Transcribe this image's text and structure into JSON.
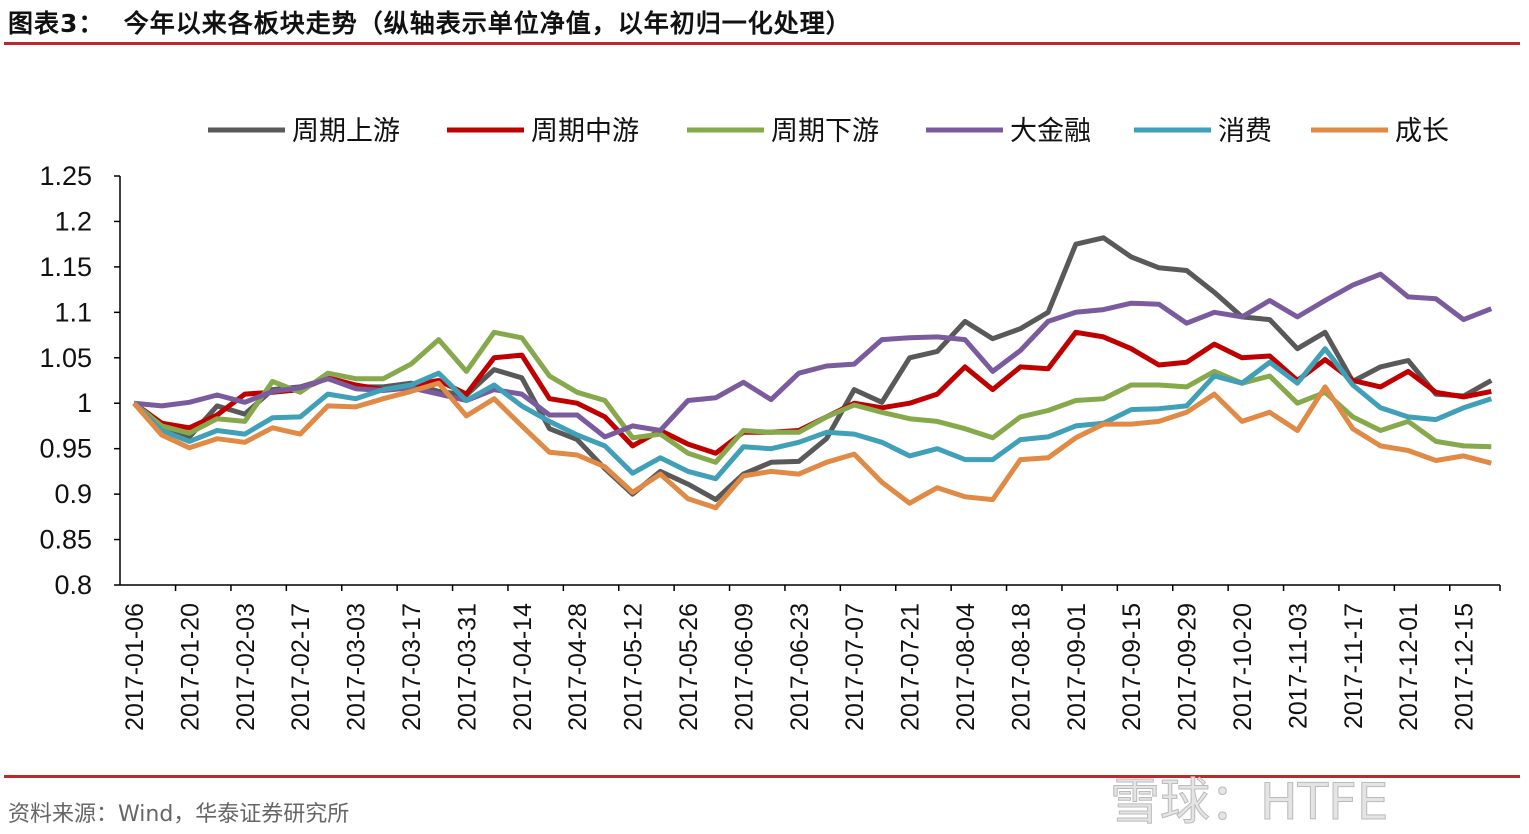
{
  "header": {
    "title": "图表3：  今年以来各板块走势（纵轴表示单位净值，以年初归一化处理）"
  },
  "footer": {
    "source": "资料来源：Wind，华泰证券研究所",
    "watermark": "雪球：HTFE"
  },
  "chart_data": {
    "type": "line",
    "title": "",
    "xlabel": "",
    "ylabel": "",
    "ylim": [
      0.8,
      1.25
    ],
    "yticks": [
      "0.8",
      "0.85",
      "0.9",
      "0.95",
      "1",
      "1.05",
      "1.1",
      "1.15",
      "1.2",
      "1.25"
    ],
    "grid": false,
    "legend": "top",
    "x": [
      "2017-01-06",
      "2017-01-13",
      "2017-01-20",
      "2017-01-27",
      "2017-02-03",
      "2017-02-10",
      "2017-02-17",
      "2017-02-24",
      "2017-03-03",
      "2017-03-10",
      "2017-03-17",
      "2017-03-24",
      "2017-03-31",
      "2017-04-07",
      "2017-04-14",
      "2017-04-21",
      "2017-04-28",
      "2017-05-05",
      "2017-05-12",
      "2017-05-19",
      "2017-05-26",
      "2017-06-02",
      "2017-06-09",
      "2017-06-16",
      "2017-06-23",
      "2017-06-30",
      "2017-07-07",
      "2017-07-14",
      "2017-07-21",
      "2017-07-28",
      "2017-08-04",
      "2017-08-11",
      "2017-08-18",
      "2017-08-25",
      "2017-09-01",
      "2017-09-08",
      "2017-09-15",
      "2017-09-22",
      "2017-09-29",
      "2017-10-20",
      "2017-10-27",
      "2017-11-03",
      "2017-11-10",
      "2017-11-17",
      "2017-11-24",
      "2017-12-01",
      "2017-12-08",
      "2017-12-15",
      "2017-12-22",
      "2017-12-29"
    ],
    "xtick_labels": [
      "2017-01-06",
      "2017-01-20",
      "2017-02-03",
      "2017-02-17",
      "2017-03-03",
      "2017-03-17",
      "2017-03-31",
      "2017-04-14",
      "2017-04-28",
      "2017-05-12",
      "2017-05-26",
      "2017-06-09",
      "2017-06-23",
      "2017-07-07",
      "2017-07-21",
      "2017-08-04",
      "2017-08-18",
      "2017-09-01",
      "2017-09-15",
      "2017-09-29",
      "2017-10-20",
      "2017-11-03",
      "2017-11-17",
      "2017-12-01",
      "2017-12-15"
    ],
    "series": [
      {
        "name": "周期上游",
        "color": "#595959",
        "values": [
          1.0,
          0.974,
          0.963,
          0.997,
          0.988,
          1.015,
          1.018,
          1.027,
          1.018,
          1.018,
          1.022,
          1.013,
          1.009,
          1.037,
          1.028,
          0.972,
          0.96,
          0.928,
          0.9,
          0.925,
          0.911,
          0.894,
          0.922,
          0.935,
          0.936,
          0.961,
          1.015,
          1.001,
          1.05,
          1.057,
          1.09,
          1.071,
          1.082,
          1.1,
          1.175,
          1.182,
          1.161,
          1.149,
          1.146,
          1.122,
          1.095,
          1.092,
          1.06,
          1.078,
          1.024,
          1.04,
          1.047,
          1.01,
          1.008,
          1.025
        ]
      },
      {
        "name": "周期中游",
        "color": "#C00000",
        "values": [
          1.0,
          0.978,
          0.973,
          0.987,
          1.01,
          1.012,
          1.015,
          1.028,
          1.02,
          1.015,
          1.02,
          1.025,
          1.01,
          1.05,
          1.053,
          1.005,
          1.0,
          0.985,
          0.953,
          0.97,
          0.955,
          0.945,
          0.968,
          0.968,
          0.97,
          0.985,
          1.0,
          0.995,
          1.0,
          1.01,
          1.04,
          1.015,
          1.04,
          1.038,
          1.078,
          1.073,
          1.06,
          1.042,
          1.045,
          1.065,
          1.05,
          1.052,
          1.025,
          1.048,
          1.025,
          1.018,
          1.035,
          1.012,
          1.007,
          1.013
        ]
      },
      {
        "name": "周期下游",
        "color": "#86A94B",
        "values": [
          1.0,
          0.975,
          0.967,
          0.983,
          0.98,
          1.024,
          1.012,
          1.033,
          1.027,
          1.027,
          1.043,
          1.07,
          1.035,
          1.078,
          1.072,
          1.03,
          1.012,
          1.003,
          0.962,
          0.966,
          0.945,
          0.935,
          0.97,
          0.968,
          0.968,
          0.985,
          0.998,
          0.99,
          0.983,
          0.98,
          0.972,
          0.962,
          0.985,
          0.992,
          1.003,
          1.005,
          1.02,
          1.02,
          1.018,
          1.035,
          1.022,
          1.03,
          1.0,
          1.012,
          0.985,
          0.97,
          0.98,
          0.958,
          0.953,
          0.952
        ]
      },
      {
        "name": "大金融",
        "color": "#7A5C9E",
        "values": [
          1.0,
          0.997,
          1.001,
          1.009,
          1.001,
          1.013,
          1.017,
          1.027,
          1.016,
          1.014,
          1.017,
          1.01,
          1.003,
          1.015,
          1.01,
          0.987,
          0.987,
          0.963,
          0.975,
          0.97,
          1.003,
          1.006,
          1.023,
          1.004,
          1.033,
          1.041,
          1.043,
          1.07,
          1.072,
          1.073,
          1.07,
          1.035,
          1.058,
          1.09,
          1.1,
          1.103,
          1.11,
          1.109,
          1.088,
          1.1,
          1.095,
          1.113,
          1.095,
          1.113,
          1.13,
          1.142,
          1.117,
          1.115,
          1.092,
          1.104
        ]
      },
      {
        "name": "消费",
        "color": "#3FA0B8",
        "values": [
          1.0,
          0.97,
          0.958,
          0.97,
          0.966,
          0.984,
          0.985,
          1.01,
          1.005,
          1.015,
          1.02,
          1.033,
          1.003,
          1.02,
          0.997,
          0.98,
          0.965,
          0.953,
          0.923,
          0.94,
          0.925,
          0.917,
          0.952,
          0.95,
          0.957,
          0.968,
          0.966,
          0.957,
          0.942,
          0.95,
          0.938,
          0.938,
          0.96,
          0.963,
          0.975,
          0.978,
          0.993,
          0.994,
          0.997,
          1.03,
          1.022,
          1.045,
          1.022,
          1.06,
          1.02,
          0.995,
          0.985,
          0.982,
          0.995,
          1.005
        ]
      },
      {
        "name": "成长",
        "color": "#E08A45",
        "values": [
          1.0,
          0.965,
          0.951,
          0.961,
          0.957,
          0.973,
          0.966,
          0.997,
          0.996,
          1.005,
          1.013,
          1.022,
          0.986,
          1.005,
          0.975,
          0.946,
          0.943,
          0.93,
          0.902,
          0.922,
          0.895,
          0.885,
          0.92,
          0.925,
          0.922,
          0.935,
          0.944,
          0.913,
          0.89,
          0.907,
          0.897,
          0.894,
          0.938,
          0.94,
          0.962,
          0.977,
          0.977,
          0.98,
          0.99,
          1.01,
          0.98,
          0.99,
          0.97,
          1.018,
          0.972,
          0.953,
          0.948,
          0.937,
          0.942,
          0.934
        ]
      }
    ]
  }
}
